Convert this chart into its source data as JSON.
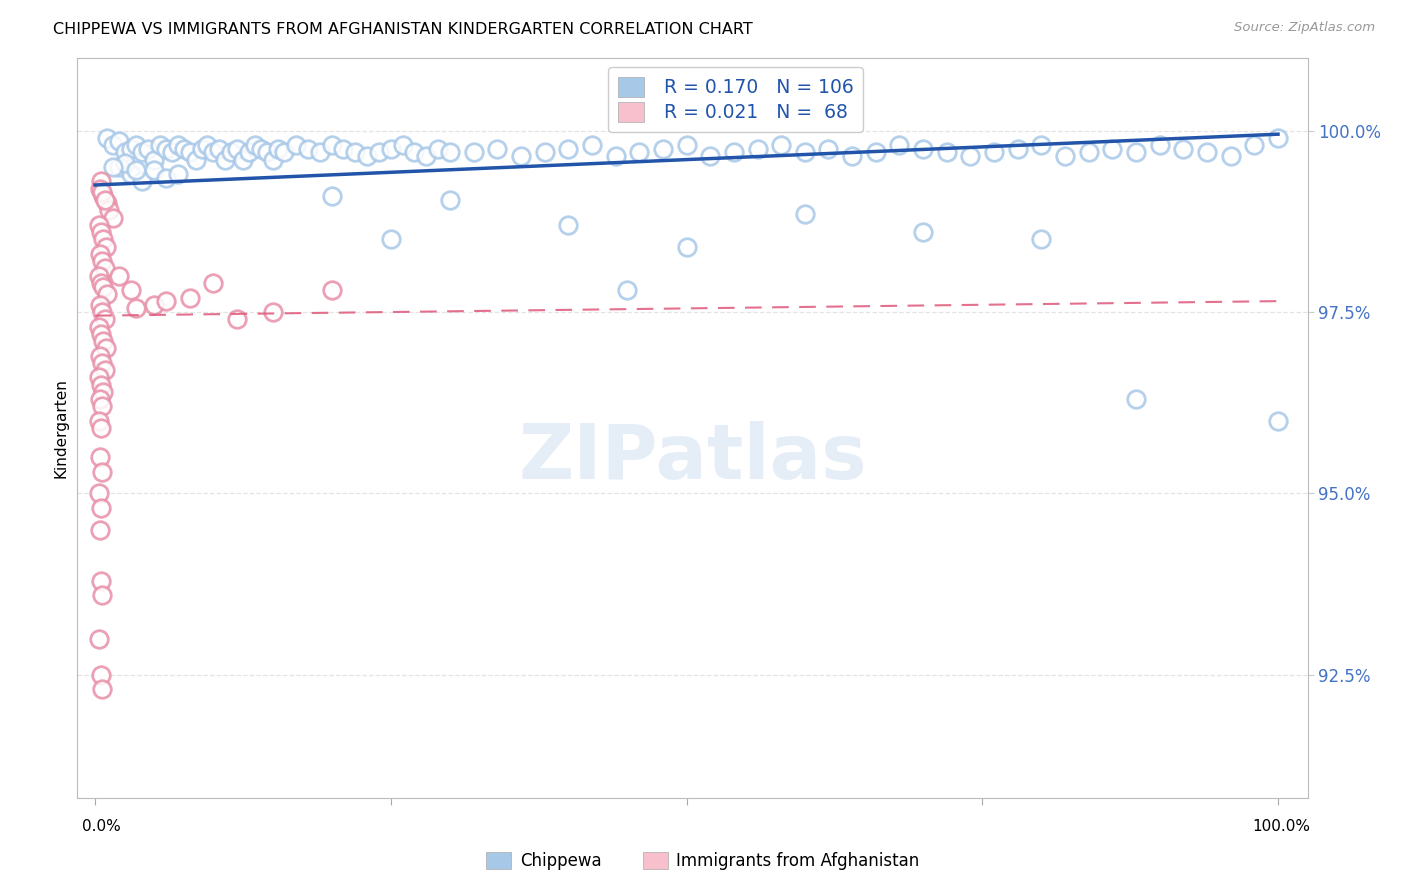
{
  "title": "CHIPPEWA VS IMMIGRANTS FROM AFGHANISTAN KINDERGARTEN CORRELATION CHART",
  "source": "Source: ZipAtlas.com",
  "ylabel": "Kindergarten",
  "legend_label1": "Chippewa",
  "legend_label2": "Immigrants from Afghanistan",
  "ymin": 90.8,
  "ymax": 101.0,
  "xmin": -1.5,
  "xmax": 102.5,
  "blue_marker_color": "#a8c8e8",
  "blue_marker_edge": "#6aaad4",
  "blue_line_color": "#2255aa",
  "pink_marker_color": "#f8c0cc",
  "pink_marker_edge": "#e890a8",
  "pink_line_color": "#e06080",
  "grid_color": "#e4e4e4",
  "yaxis_label_color": "#4472c4",
  "background_color": "#ffffff",
  "watermark": "ZIPatlas",
  "blue_trend_x": [
    0,
    100
  ],
  "blue_trend_y": [
    99.25,
    99.95
  ],
  "pink_trend_x": [
    0,
    100
  ],
  "pink_trend_y": [
    97.45,
    97.65
  ],
  "blue_dots": [
    [
      1.0,
      99.9
    ],
    [
      1.5,
      99.8
    ],
    [
      2.0,
      99.85
    ],
    [
      2.5,
      99.7
    ],
    [
      3.0,
      99.75
    ],
    [
      3.5,
      99.8
    ],
    [
      4.0,
      99.7
    ],
    [
      4.5,
      99.75
    ],
    [
      5.0,
      99.6
    ],
    [
      5.5,
      99.8
    ],
    [
      6.0,
      99.75
    ],
    [
      6.5,
      99.7
    ],
    [
      7.0,
      99.8
    ],
    [
      7.5,
      99.75
    ],
    [
      8.0,
      99.7
    ],
    [
      8.5,
      99.6
    ],
    [
      9.0,
      99.75
    ],
    [
      9.5,
      99.8
    ],
    [
      10.0,
      99.7
    ],
    [
      10.5,
      99.75
    ],
    [
      11.0,
      99.6
    ],
    [
      11.5,
      99.7
    ],
    [
      12.0,
      99.75
    ],
    [
      12.5,
      99.6
    ],
    [
      13.0,
      99.7
    ],
    [
      13.5,
      99.8
    ],
    [
      14.0,
      99.75
    ],
    [
      14.5,
      99.7
    ],
    [
      15.0,
      99.6
    ],
    [
      15.5,
      99.75
    ],
    [
      16.0,
      99.7
    ],
    [
      17.0,
      99.8
    ],
    [
      18.0,
      99.75
    ],
    [
      19.0,
      99.7
    ],
    [
      20.0,
      99.8
    ],
    [
      21.0,
      99.75
    ],
    [
      22.0,
      99.7
    ],
    [
      23.0,
      99.65
    ],
    [
      24.0,
      99.7
    ],
    [
      25.0,
      99.75
    ],
    [
      26.0,
      99.8
    ],
    [
      27.0,
      99.7
    ],
    [
      28.0,
      99.65
    ],
    [
      29.0,
      99.75
    ],
    [
      30.0,
      99.7
    ],
    [
      32.0,
      99.7
    ],
    [
      34.0,
      99.75
    ],
    [
      36.0,
      99.65
    ],
    [
      38.0,
      99.7
    ],
    [
      40.0,
      99.75
    ],
    [
      42.0,
      99.8
    ],
    [
      44.0,
      99.65
    ],
    [
      46.0,
      99.7
    ],
    [
      48.0,
      99.75
    ],
    [
      50.0,
      99.8
    ],
    [
      52.0,
      99.65
    ],
    [
      54.0,
      99.7
    ],
    [
      56.0,
      99.75
    ],
    [
      58.0,
      99.8
    ],
    [
      60.0,
      99.7
    ],
    [
      62.0,
      99.75
    ],
    [
      64.0,
      99.65
    ],
    [
      66.0,
      99.7
    ],
    [
      68.0,
      99.8
    ],
    [
      70.0,
      99.75
    ],
    [
      72.0,
      99.7
    ],
    [
      74.0,
      99.65
    ],
    [
      76.0,
      99.7
    ],
    [
      78.0,
      99.75
    ],
    [
      80.0,
      99.8
    ],
    [
      82.0,
      99.65
    ],
    [
      84.0,
      99.7
    ],
    [
      86.0,
      99.75
    ],
    [
      88.0,
      99.7
    ],
    [
      90.0,
      99.8
    ],
    [
      92.0,
      99.75
    ],
    [
      94.0,
      99.7
    ],
    [
      96.0,
      99.65
    ],
    [
      98.0,
      99.8
    ],
    [
      100.0,
      99.9
    ],
    [
      2.0,
      99.5
    ],
    [
      3.0,
      99.4
    ],
    [
      4.0,
      99.3
    ],
    [
      5.0,
      99.45
    ],
    [
      6.0,
      99.35
    ],
    [
      7.0,
      99.4
    ],
    [
      2.5,
      99.55
    ],
    [
      3.5,
      99.45
    ],
    [
      1.5,
      99.5
    ],
    [
      20.0,
      99.1
    ],
    [
      30.0,
      99.05
    ],
    [
      40.0,
      98.7
    ],
    [
      50.0,
      98.4
    ],
    [
      60.0,
      98.85
    ],
    [
      70.0,
      98.6
    ],
    [
      80.0,
      98.5
    ],
    [
      88.0,
      96.3
    ],
    [
      100.0,
      96.0
    ],
    [
      25.0,
      98.5
    ],
    [
      45.0,
      97.8
    ]
  ],
  "pink_dots": [
    [
      0.5,
      99.3
    ],
    [
      0.7,
      99.1
    ],
    [
      1.0,
      99.0
    ],
    [
      1.2,
      98.9
    ],
    [
      1.5,
      98.8
    ],
    [
      0.4,
      99.2
    ],
    [
      0.6,
      99.15
    ],
    [
      0.8,
      99.05
    ],
    [
      0.3,
      98.7
    ],
    [
      0.5,
      98.6
    ],
    [
      0.7,
      98.5
    ],
    [
      0.9,
      98.4
    ],
    [
      0.4,
      98.3
    ],
    [
      0.6,
      98.2
    ],
    [
      0.8,
      98.1
    ],
    [
      0.3,
      98.0
    ],
    [
      0.5,
      97.9
    ],
    [
      0.7,
      97.85
    ],
    [
      1.0,
      97.75
    ],
    [
      0.4,
      97.6
    ],
    [
      0.6,
      97.5
    ],
    [
      0.8,
      97.4
    ],
    [
      0.3,
      97.3
    ],
    [
      0.5,
      97.2
    ],
    [
      0.7,
      97.1
    ],
    [
      0.9,
      97.0
    ],
    [
      0.4,
      96.9
    ],
    [
      0.6,
      96.8
    ],
    [
      0.8,
      96.7
    ],
    [
      0.3,
      96.6
    ],
    [
      0.5,
      96.5
    ],
    [
      0.7,
      96.4
    ],
    [
      0.4,
      96.3
    ],
    [
      0.6,
      96.2
    ],
    [
      0.3,
      96.0
    ],
    [
      0.5,
      95.9
    ],
    [
      0.4,
      95.5
    ],
    [
      0.6,
      95.3
    ],
    [
      0.3,
      95.0
    ],
    [
      0.5,
      94.8
    ],
    [
      0.4,
      94.5
    ],
    [
      0.5,
      93.8
    ],
    [
      0.6,
      93.6
    ],
    [
      0.3,
      93.0
    ],
    [
      0.5,
      92.5
    ],
    [
      0.6,
      92.3
    ],
    [
      2.0,
      98.0
    ],
    [
      3.0,
      97.8
    ],
    [
      5.0,
      97.6
    ],
    [
      8.0,
      97.7
    ],
    [
      10.0,
      97.9
    ],
    [
      15.0,
      97.5
    ],
    [
      20.0,
      97.8
    ],
    [
      3.5,
      97.55
    ],
    [
      6.0,
      97.65
    ],
    [
      12.0,
      97.4
    ]
  ]
}
